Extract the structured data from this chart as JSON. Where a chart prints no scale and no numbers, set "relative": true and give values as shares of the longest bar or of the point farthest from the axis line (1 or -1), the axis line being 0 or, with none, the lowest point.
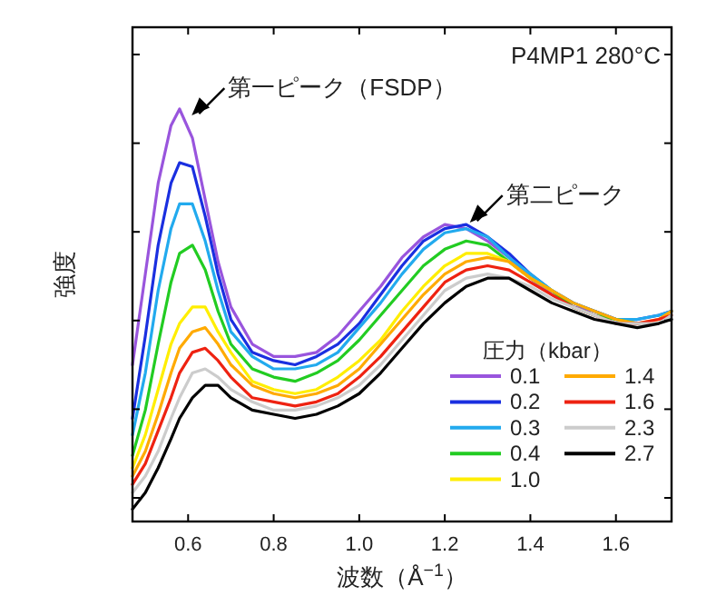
{
  "chart_data": {
    "type": "line",
    "relative": true,
    "xlabel": "波数（Å$^{−1}$）",
    "ylabel": "強度",
    "legend_title": "圧力（kbar）",
    "legend": "bottom right",
    "xlim": [
      0.47,
      1.73
    ],
    "xticks": [
      {
        "value": 0.6,
        "label": "0.6"
      },
      {
        "value": 0.8,
        "label": "0.8"
      },
      {
        "value": 1.0,
        "label": "1.0"
      },
      {
        "value": 1.2,
        "label": "1.2"
      },
      {
        "value": 1.4,
        "label": "1.4"
      },
      {
        "value": 1.6,
        "label": "1.6"
      }
    ],
    "x": [
      0.47,
      0.5,
      0.53,
      0.56,
      0.58,
      0.61,
      0.64,
      0.67,
      0.7,
      0.75,
      0.8,
      0.85,
      0.9,
      0.95,
      1.0,
      1.05,
      1.1,
      1.15,
      1.2,
      1.25,
      1.3,
      1.35,
      1.4,
      1.45,
      1.5,
      1.55,
      1.6,
      1.65,
      1.7,
      1.73
    ],
    "annotations": [
      "P4MP1 280°C",
      {
        "text": "第一ピーク（FSDP）",
        "x": 0.6,
        "y": 0.98
      },
      {
        "text": "第二ピーク",
        "x": 1.25,
        "y": 0.72
      }
    ],
    "series": [
      {
        "name": "0.1",
        "color": "#9955dd",
        "values": [
          0.38,
          0.6,
          0.82,
          0.96,
          1.0,
          0.93,
          0.78,
          0.63,
          0.52,
          0.43,
          0.4,
          0.4,
          0.41,
          0.45,
          0.51,
          0.57,
          0.64,
          0.69,
          0.72,
          0.71,
          0.68,
          0.64,
          0.59,
          0.55,
          0.52,
          0.51,
          0.49,
          null,
          null,
          null
        ]
      },
      {
        "name": "0.2",
        "color": "#1a2fe0",
        "values": [
          0.25,
          0.45,
          0.67,
          0.82,
          0.87,
          0.86,
          0.74,
          0.6,
          0.49,
          0.41,
          0.39,
          0.38,
          0.4,
          0.43,
          0.48,
          0.55,
          0.62,
          0.68,
          0.71,
          0.72,
          0.69,
          0.65,
          0.6,
          0.56,
          0.53,
          0.51,
          0.49,
          0.49,
          0.5,
          0.51
        ]
      },
      {
        "name": "0.3",
        "color": "#22aaee",
        "values": [
          0.21,
          0.36,
          0.56,
          0.71,
          0.77,
          0.77,
          0.68,
          0.56,
          0.46,
          0.4,
          0.37,
          0.37,
          0.38,
          0.41,
          0.47,
          0.53,
          0.6,
          0.66,
          0.7,
          0.71,
          0.69,
          0.64,
          0.6,
          0.56,
          0.53,
          0.51,
          0.49,
          0.49,
          0.5,
          0.51
        ]
      },
      {
        "name": "0.4",
        "color": "#22cc22",
        "values": [
          0.16,
          0.27,
          0.43,
          0.58,
          0.65,
          0.67,
          0.61,
          0.51,
          0.43,
          0.37,
          0.35,
          0.34,
          0.36,
          0.39,
          0.44,
          0.5,
          0.56,
          0.62,
          0.66,
          0.68,
          0.67,
          0.63,
          0.59,
          0.56,
          0.52,
          0.5,
          0.49,
          0.48,
          null,
          null
        ]
      },
      {
        "name": "1.0",
        "color": "#ffee00",
        "values": [
          0.13,
          0.21,
          0.32,
          0.43,
          0.48,
          0.52,
          0.52,
          0.46,
          0.41,
          0.34,
          0.32,
          0.31,
          0.32,
          0.35,
          0.39,
          0.44,
          0.51,
          0.57,
          0.62,
          0.65,
          0.65,
          0.63,
          0.59,
          0.56,
          null,
          null,
          null,
          null,
          null,
          null
        ]
      },
      {
        "name": "1.4",
        "color": "#ffaa00",
        "values": [
          0.11,
          0.17,
          0.26,
          0.36,
          0.42,
          0.46,
          0.47,
          0.43,
          0.38,
          0.33,
          0.31,
          0.3,
          0.31,
          0.33,
          0.37,
          0.43,
          0.49,
          0.55,
          0.6,
          0.63,
          0.64,
          0.63,
          0.59,
          0.56,
          0.53,
          0.51,
          0.49,
          0.48,
          0.49,
          0.51
        ]
      },
      {
        "name": "1.6",
        "color": "#ee2211",
        "values": [
          0.09,
          0.14,
          0.22,
          0.3,
          0.36,
          0.41,
          0.42,
          0.39,
          0.35,
          0.3,
          0.29,
          0.28,
          0.29,
          0.31,
          0.35,
          0.4,
          0.46,
          0.52,
          0.58,
          0.61,
          0.62,
          0.61,
          0.58,
          0.55,
          0.52,
          0.5,
          0.48,
          0.48,
          0.49,
          0.5
        ]
      },
      {
        "name": "2.3",
        "color": "#cccccc",
        "values": [
          0.07,
          0.11,
          0.17,
          0.25,
          0.3,
          0.36,
          0.37,
          0.35,
          0.32,
          0.29,
          0.27,
          0.27,
          0.28,
          0.3,
          0.33,
          0.38,
          0.44,
          0.5,
          0.56,
          0.59,
          0.6,
          0.59,
          0.57,
          0.54,
          0.52,
          0.5,
          0.48,
          0.48,
          0.48,
          0.5
        ]
      },
      {
        "name": "2.7",
        "color": "#000000",
        "values": [
          0.03,
          0.07,
          0.13,
          0.2,
          0.25,
          0.3,
          0.33,
          0.33,
          0.3,
          0.27,
          0.26,
          0.25,
          0.26,
          0.28,
          0.31,
          0.36,
          0.42,
          0.48,
          0.53,
          0.57,
          0.59,
          0.59,
          0.56,
          0.53,
          0.51,
          0.49,
          0.48,
          0.47,
          0.48,
          0.49
        ]
      }
    ]
  }
}
